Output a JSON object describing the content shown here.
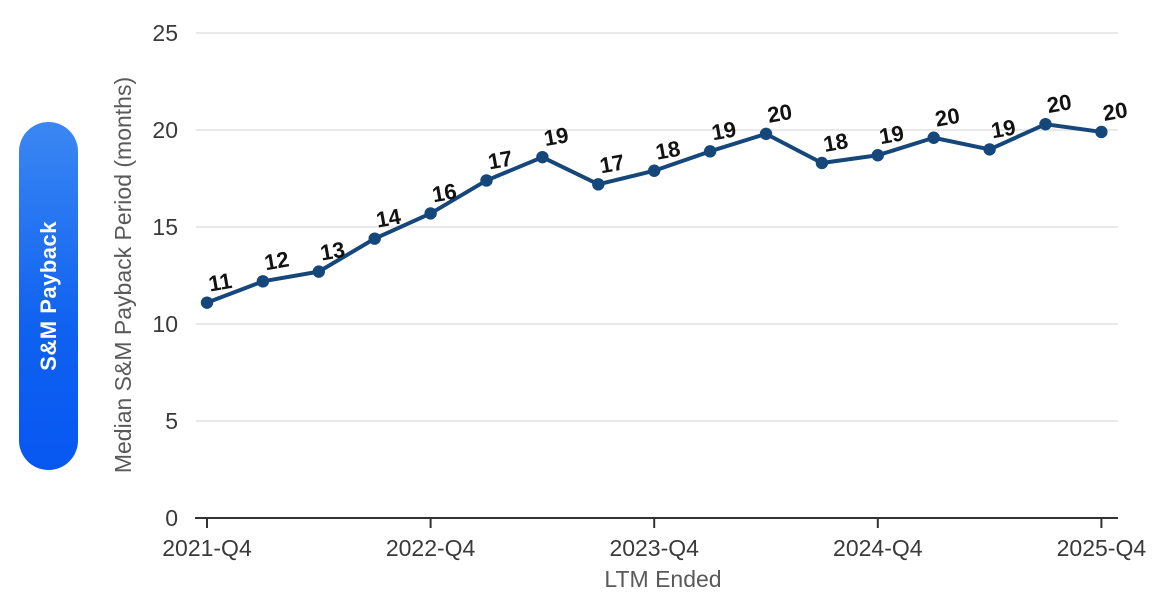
{
  "sidebar_tab": {
    "label": "S&M Payback",
    "gradient_top": "#3b87f3",
    "gradient_mid": "#0f61f0",
    "gradient_bottom": "#0757f2",
    "text_color": "#ffffff"
  },
  "chart_data": {
    "type": "line",
    "title": "",
    "xlabel": "LTM Ended",
    "ylabel": "Median S&M Payback Period (months)",
    "x": [
      "2021-Q4",
      "2022-Q1",
      "2022-Q2",
      "2022-Q3",
      "2022-Q4",
      "2023-Q1",
      "2023-Q2",
      "2023-Q3",
      "2023-Q4",
      "2024-Q1",
      "2024-Q2",
      "2024-Q3",
      "2024-Q4",
      "2025-Q1",
      "2025-Q2",
      "2025-Q3",
      "2025-Q4"
    ],
    "values": [
      11.1,
      12.2,
      12.7,
      14.4,
      15.7,
      17.4,
      18.6,
      17.2,
      17.9,
      18.9,
      19.8,
      18.3,
      18.7,
      19.6,
      19.0,
      20.3,
      19.9
    ],
    "point_labels": [
      "11",
      "12",
      "13",
      "14",
      "16",
      "17",
      "19",
      "17",
      "18",
      "19",
      "20",
      "18",
      "19",
      "20",
      "19",
      "20",
      "20"
    ],
    "x_tick_labels": [
      "2021-Q4",
      "2022-Q4",
      "2023-Q4",
      "2024-Q4",
      "2025-Q4"
    ],
    "x_tick_indices": [
      0,
      4,
      8,
      12,
      16
    ],
    "ylim": [
      0,
      25
    ],
    "y_ticks": [
      0,
      5,
      10,
      15,
      20,
      25
    ],
    "grid": "horizontal",
    "legend": "none",
    "line_color": "#16477B",
    "marker_color": "#16477B",
    "point_label_color": "#121212",
    "grid_color": "#e9e9e9",
    "axis_color": "#333333",
    "tick_label_color": "#3a3a3a",
    "axis_title_color": "#5a5a5a"
  }
}
